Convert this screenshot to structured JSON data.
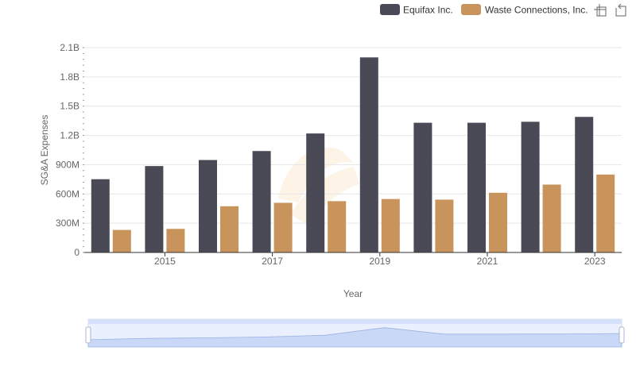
{
  "chart_data": {
    "type": "bar",
    "title": "",
    "xlabel": "Year",
    "ylabel": "SG&A Expenses",
    "ylim": [
      0,
      2100000000
    ],
    "y_ticks": [
      {
        "value": 0,
        "label": "0"
      },
      {
        "value": 300000000,
        "label": "300M"
      },
      {
        "value": 600000000,
        "label": "600M"
      },
      {
        "value": 900000000,
        "label": "900M"
      },
      {
        "value": 1200000000,
        "label": "1.2B"
      },
      {
        "value": 1500000000,
        "label": "1.5B"
      },
      {
        "value": 1800000000,
        "label": "1.8B"
      },
      {
        "value": 2100000000,
        "label": "2.1B"
      }
    ],
    "categories": [
      "2014",
      "2015",
      "2016",
      "2017",
      "2018",
      "2019",
      "2020",
      "2021",
      "2022",
      "2023"
    ],
    "x_tick_labels": [
      {
        "category": "2015",
        "label": "2015"
      },
      {
        "category": "2017",
        "label": "2017"
      },
      {
        "category": "2019",
        "label": "2019"
      },
      {
        "category": "2021",
        "label": "2021"
      },
      {
        "category": "2023",
        "label": "2023"
      }
    ],
    "series": [
      {
        "name": "Equifax Inc.",
        "color": "#4a4a56",
        "values": [
          751000000,
          886000000,
          948000000,
          1040000000,
          1220000000,
          2000000000,
          1330000000,
          1330000000,
          1340000000,
          1390000000
        ]
      },
      {
        "name": "Waste Connections, Inc.",
        "color": "#c9935c",
        "values": [
          231000000,
          242000000,
          474000000,
          509000000,
          526000000,
          548000000,
          542000000,
          612000000,
          696000000,
          799000000
        ]
      }
    ],
    "legend_position": "top-right",
    "grid": true
  },
  "toolbar": {
    "zoom_icon": "zoom-select-icon",
    "reset_icon": "zoom-reset-icon"
  },
  "datazoom": {
    "start": 0,
    "end": 100
  }
}
